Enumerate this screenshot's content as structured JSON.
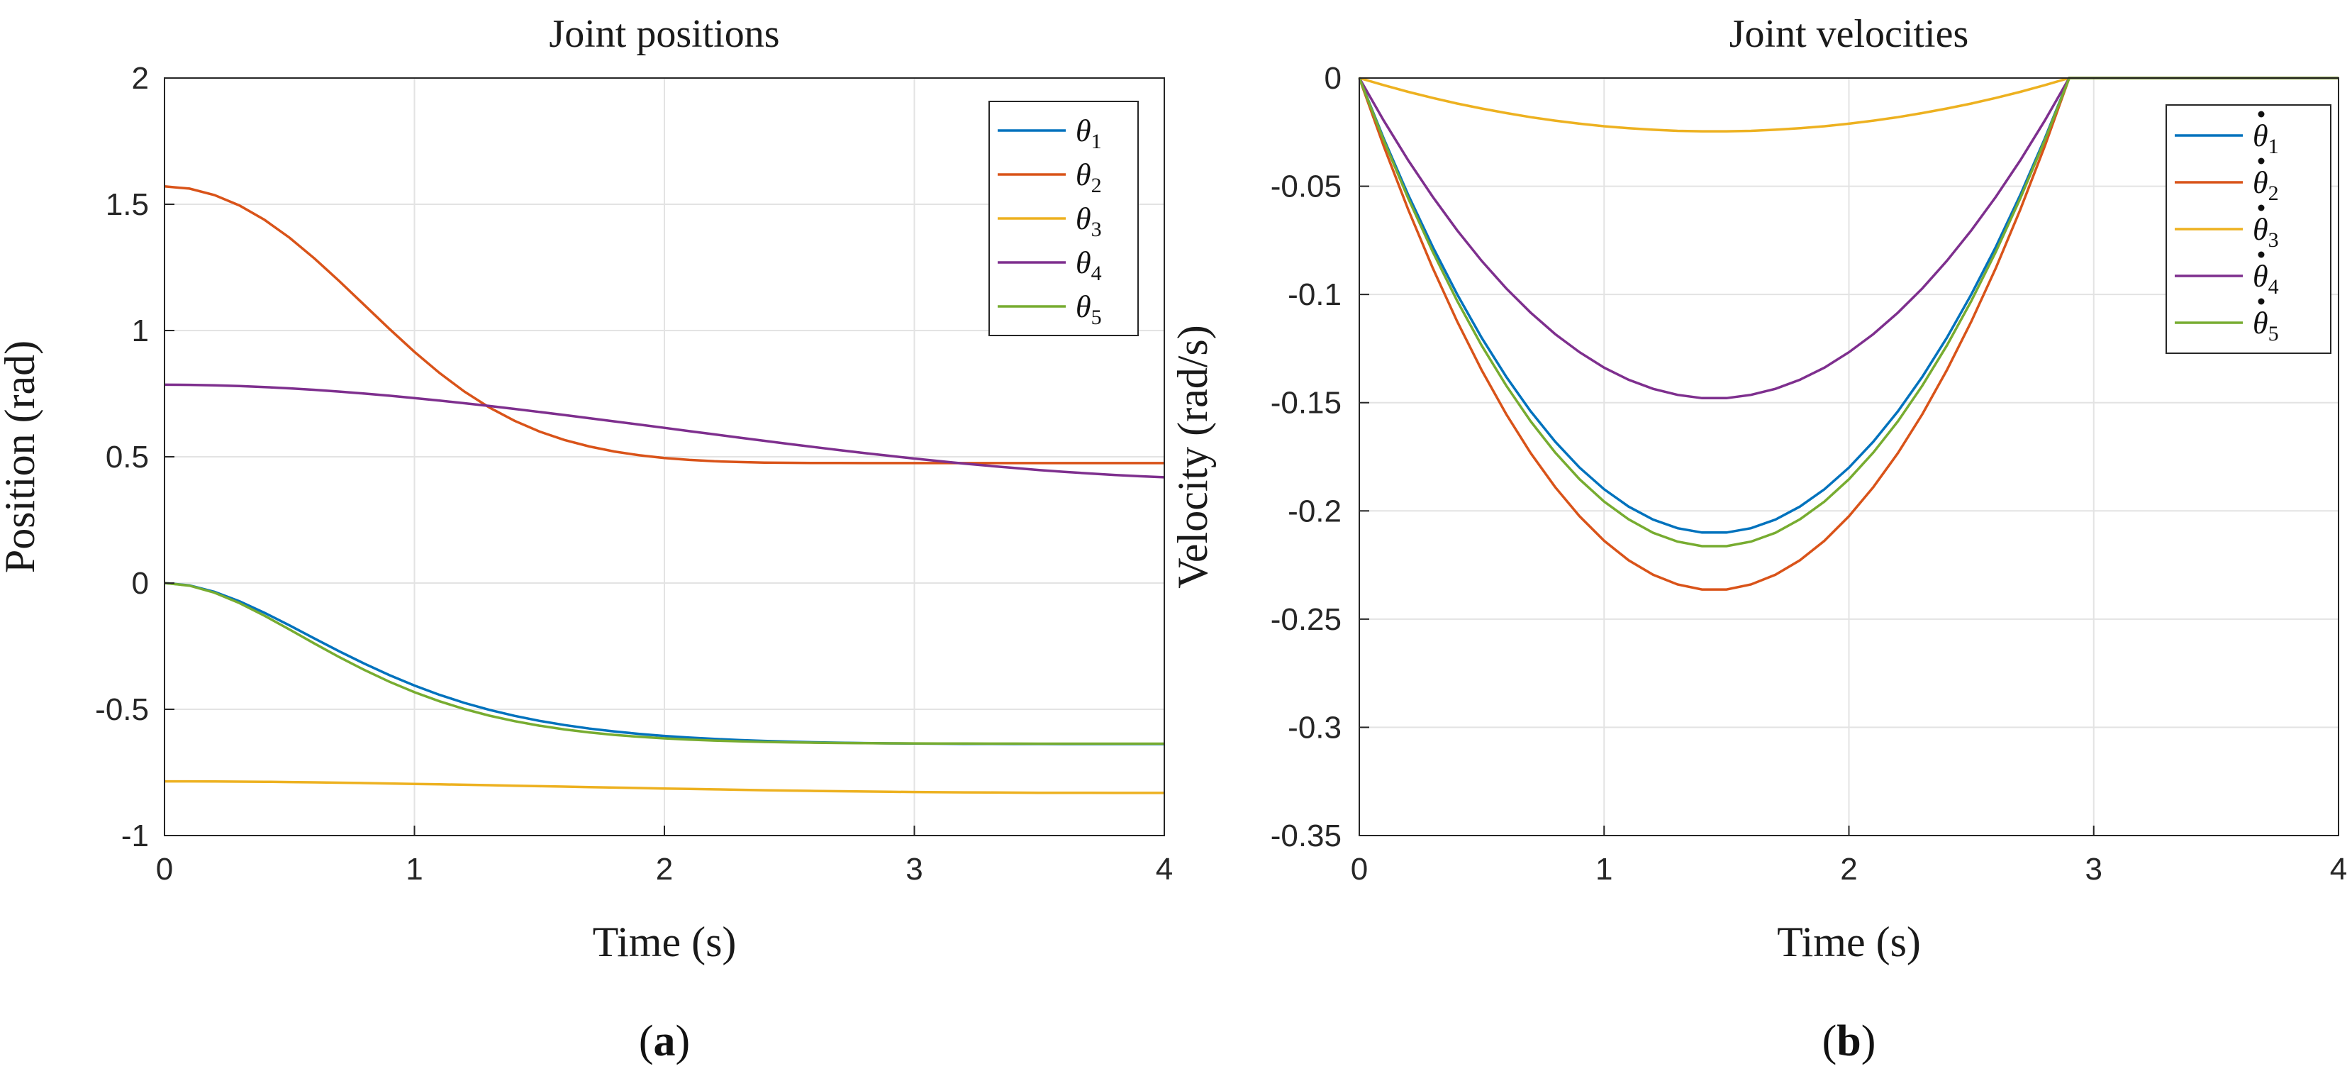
{
  "figure": {
    "panel_labels": [
      {
        "open": "(",
        "letter": "a",
        "close": ")"
      },
      {
        "open": "(",
        "letter": "b",
        "close": ")"
      }
    ]
  },
  "chart_data": [
    {
      "type": "line",
      "title": "Joint positions",
      "xlabel": "Time (s)",
      "ylabel": "Position (rad)",
      "xlim": [
        0,
        4
      ],
      "ylim": [
        -1,
        2
      ],
      "xticks": [
        0,
        1,
        2,
        3,
        4
      ],
      "xtick_labels": [
        "0",
        "1",
        "2",
        "3",
        "4"
      ],
      "yticks": [
        -1,
        -0.5,
        0,
        0.5,
        1,
        1.5,
        2
      ],
      "ytick_labels": [
        "-1",
        "-0.5",
        "0",
        "0.5",
        "1",
        "1.5",
        "2"
      ],
      "grid": true,
      "legend_position": "top-right",
      "series": [
        {
          "name": "θ",
          "subscript": "1",
          "dot": false,
          "color": "#0072BD",
          "values": [
            0,
            -0.0093,
            -0.0347,
            -0.0721,
            -0.1178,
            -0.1678,
            -0.2196,
            -0.2707,
            -0.3194,
            -0.3648,
            -0.406,
            -0.4427,
            -0.4747,
            -0.5023,
            -0.5258,
            -0.5457,
            -0.5624,
            -0.5763,
            -0.5879,
            -0.5975,
            -0.6055,
            -0.612,
            -0.6174,
            -0.6218,
            -0.6254,
            -0.6282,
            -0.6305,
            -0.6323,
            -0.6337,
            -0.6348,
            -0.6356,
            -0.6363,
            -0.6367,
            -0.6371,
            -0.6373,
            -0.6374,
            -0.6375,
            -0.6376,
            -0.6376,
            -0.6376,
            -0.6376
          ]
        },
        {
          "name": "θ",
          "subscript": "2",
          "dot": false,
          "color": "#D95319",
          "values": [
            1.5708,
            1.5621,
            1.5366,
            1.4952,
            1.4384,
            1.3677,
            1.2854,
            1.195,
            1.1006,
            1.0061,
            0.9154,
            0.832,
            0.7582,
            0.695,
            0.6426,
            0.6001,
            0.5666,
            0.5406,
            0.5208,
            0.506,
            0.4952,
            0.4876,
            0.4824,
            0.4791,
            0.4771,
            0.476,
            0.4754,
            0.4752,
            0.4751,
            0.4751,
            0.4751,
            0.4751,
            0.4751,
            0.4751,
            0.4751,
            0.4751,
            0.4751,
            0.4751,
            0.4751,
            0.4751,
            0.4751
          ]
        },
        {
          "name": "θ",
          "subscript": "3",
          "dot": false,
          "color": "#EDB120",
          "values": [
            -0.7854,
            -0.7855,
            -0.7859,
            -0.7864,
            -0.7872,
            -0.7882,
            -0.7894,
            -0.7907,
            -0.7922,
            -0.7937,
            -0.7954,
            -0.7971,
            -0.7989,
            -0.8007,
            -0.8026,
            -0.8044,
            -0.8063,
            -0.8082,
            -0.81,
            -0.8119,
            -0.8137,
            -0.8155,
            -0.8172,
            -0.8188,
            -0.8204,
            -0.8218,
            -0.8232,
            -0.8244,
            -0.8256,
            -0.8266,
            -0.8275,
            -0.8283,
            -0.829,
            -0.8296,
            -0.8301,
            -0.8305,
            -0.8308,
            -0.831,
            -0.8312,
            -0.8313,
            -0.8313
          ]
        },
        {
          "name": "θ",
          "subscript": "4",
          "dot": false,
          "color": "#7E2F8E",
          "values": [
            0.7854,
            0.7848,
            0.783,
            0.7801,
            0.7761,
            0.7711,
            0.7651,
            0.7582,
            0.7504,
            0.7418,
            0.7325,
            0.7226,
            0.7121,
            0.701,
            0.6895,
            0.6776,
            0.6654,
            0.6529,
            0.6402,
            0.6274,
            0.6145,
            0.6015,
            0.5887,
            0.5758,
            0.5632,
            0.5507,
            0.5385,
            0.5265,
            0.515,
            0.5038,
            0.4931,
            0.4828,
            0.4731,
            0.464,
            0.4555,
            0.4476,
            0.4404,
            0.4339,
            0.4281,
            0.4231,
            0.4189
          ]
        },
        {
          "name": "θ",
          "subscript": "5",
          "dot": false,
          "color": "#77AC30",
          "values": [
            0,
            -0.0103,
            -0.0383,
            -0.0795,
            -0.1296,
            -0.184,
            -0.2396,
            -0.2937,
            -0.3445,
            -0.3909,
            -0.4322,
            -0.4682,
            -0.4991,
            -0.5252,
            -0.547,
            -0.565,
            -0.5797,
            -0.5917,
            -0.6013,
            -0.609,
            -0.6151,
            -0.62,
            -0.6238,
            -0.6268,
            -0.6291,
            -0.6309,
            -0.6323,
            -0.6333,
            -0.6341,
            -0.6347,
            -0.6352,
            -0.6355,
            -0.6357,
            -0.6359,
            -0.636,
            -0.6361,
            -0.6362,
            -0.6362,
            -0.6362,
            -0.6362,
            -0.6362
          ]
        }
      ]
    },
    {
      "type": "line",
      "title": "Joint velocities",
      "xlabel": "Time (s)",
      "ylabel": "Velocity (rad/s)",
      "xlim": [
        0,
        4
      ],
      "ylim": [
        -0.35,
        0
      ],
      "xticks": [
        0,
        1,
        2,
        3,
        4
      ],
      "xtick_labels": [
        "0",
        "1",
        "2",
        "3",
        "4"
      ],
      "yticks": [
        -0.35,
        -0.3,
        -0.25,
        -0.2,
        -0.15,
        -0.1,
        -0.05,
        0
      ],
      "ytick_labels": [
        "-0.35",
        "-0.3",
        "-0.25",
        "-0.2",
        "-0.15",
        "-0.1",
        "-0.05",
        "0"
      ],
      "grid": true,
      "legend_position": "top-right",
      "series": [
        {
          "name": "θ",
          "subscript": "1",
          "dot": true,
          "color": "#0072BD",
          "values": [
            0,
            -0.028,
            -0.054,
            -0.078,
            -0.1,
            -0.12,
            -0.138,
            -0.154,
            -0.168,
            -0.18,
            -0.19,
            -0.198,
            -0.204,
            -0.208,
            -0.21,
            -0.21,
            -0.208,
            -0.204,
            -0.198,
            -0.19,
            -0.18,
            -0.168,
            -0.154,
            -0.138,
            -0.12,
            -0.1,
            -0.078,
            -0.054,
            -0.028,
            0,
            0,
            0,
            0,
            0,
            0,
            0,
            0,
            0,
            0,
            0,
            0
          ]
        },
        {
          "name": "θ",
          "subscript": "2",
          "dot": true,
          "color": "#D95319",
          "values": [
            0,
            -0.0315,
            -0.0608,
            -0.0878,
            -0.1125,
            -0.135,
            -0.1553,
            -0.1733,
            -0.189,
            -0.2025,
            -0.2138,
            -0.2228,
            -0.2295,
            -0.234,
            -0.2363,
            -0.2363,
            -0.234,
            -0.2295,
            -0.2228,
            -0.2138,
            -0.2025,
            -0.189,
            -0.1733,
            -0.1553,
            -0.135,
            -0.1125,
            -0.0878,
            -0.0608,
            -0.0315,
            0,
            0,
            0,
            0,
            0,
            0,
            0,
            0,
            0,
            0,
            0,
            0
          ]
        },
        {
          "name": "θ",
          "subscript": "3",
          "dot": true,
          "color": "#EDB120",
          "values": [
            0,
            -0.0033,
            -0.0064,
            -0.0092,
            -0.0118,
            -0.0141,
            -0.0162,
            -0.0181,
            -0.0197,
            -0.0211,
            -0.0223,
            -0.0232,
            -0.0239,
            -0.0244,
            -0.0246,
            -0.0246,
            -0.0244,
            -0.0239,
            -0.0232,
            -0.0223,
            -0.0211,
            -0.0197,
            -0.0181,
            -0.0162,
            -0.0141,
            -0.0118,
            -0.0092,
            -0.0064,
            -0.0033,
            0,
            0,
            0,
            0,
            0,
            0,
            0,
            0,
            0,
            0,
            0,
            0
          ]
        },
        {
          "name": "θ",
          "subscript": "4",
          "dot": true,
          "color": "#7E2F8E",
          "values": [
            0,
            -0.0197,
            -0.038,
            -0.0549,
            -0.0704,
            -0.0845,
            -0.0972,
            -0.1084,
            -0.1183,
            -0.1267,
            -0.1338,
            -0.1394,
            -0.1436,
            -0.1464,
            -0.1479,
            -0.1479,
            -0.1464,
            -0.1436,
            -0.1394,
            -0.1338,
            -0.1267,
            -0.1183,
            -0.1084,
            -0.0972,
            -0.0845,
            -0.0704,
            -0.0549,
            -0.038,
            -0.0197,
            0,
            0,
            0,
            0,
            0,
            0,
            0,
            0,
            0,
            0,
            0,
            0
          ]
        },
        {
          "name": "θ",
          "subscript": "5",
          "dot": true,
          "color": "#77AC30",
          "values": [
            0,
            -0.0288,
            -0.0556,
            -0.0803,
            -0.103,
            -0.1236,
            -0.1421,
            -0.1586,
            -0.173,
            -0.1854,
            -0.1957,
            -0.2039,
            -0.2101,
            -0.2142,
            -0.2163,
            -0.2163,
            -0.2142,
            -0.2101,
            -0.2039,
            -0.1957,
            -0.1854,
            -0.173,
            -0.1586,
            -0.1421,
            -0.1236,
            -0.103,
            -0.0803,
            -0.0556,
            -0.0288,
            0,
            0,
            0,
            0,
            0,
            0,
            0,
            0,
            0,
            0,
            0,
            0
          ]
        }
      ]
    }
  ]
}
